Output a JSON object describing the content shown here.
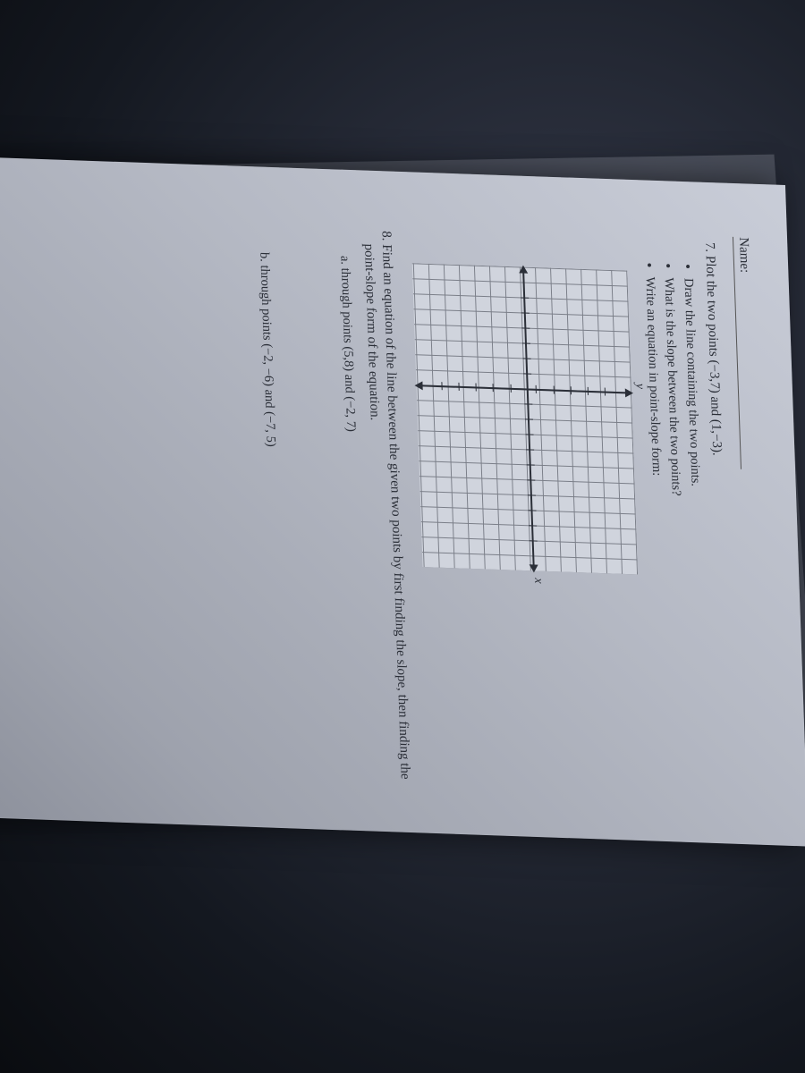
{
  "name_label": "Name:",
  "q7": {
    "number_start": 7,
    "prompt": "Plot the two points (−3,7) and (1,−3).",
    "bullets": [
      "Draw the line containing the two points.",
      "What is the slope between the two points?",
      "Write an equation in point-slope form:"
    ],
    "axis_labels": {
      "x": "x",
      "y": "y"
    },
    "grid": {
      "cols": 20,
      "rows": 14,
      "tick_positions_x": [
        0.1,
        0.15,
        0.2,
        0.25,
        0.3,
        0.35,
        0.45,
        0.5,
        0.55,
        0.6,
        0.65,
        0.7,
        0.75,
        0.8,
        0.85,
        0.9
      ],
      "tick_positions_y": [
        0.12,
        0.2,
        0.28,
        0.36,
        0.44,
        0.56,
        0.64,
        0.72,
        0.8,
        0.88
      ]
    }
  },
  "q8": {
    "prompt": "Find an equation of the line between the given two points by first finding the slope, then finding the point-slope form of the equation.",
    "parts": [
      "through points (5,8) and (−2, 7)",
      "through points (−2, −6) and (−7, 5)"
    ]
  },
  "colors": {
    "paper_text": "#2b2f38",
    "grid_line": "#7a7e88",
    "grid_bg": "#d0d4dd"
  }
}
